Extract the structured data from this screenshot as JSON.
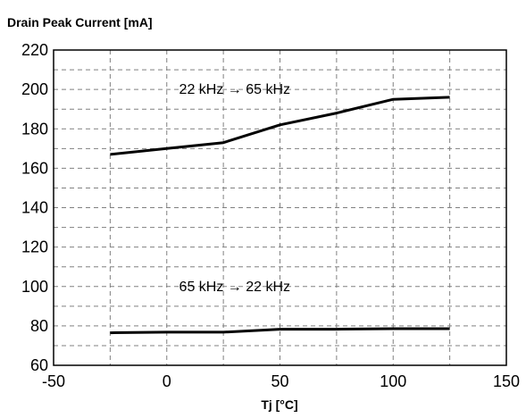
{
  "chart_data": {
    "type": "line",
    "title": "",
    "ylabel": "Drain Peak Current [mA]",
    "xlabel": "Tj [°C]",
    "xlim": [
      -50,
      150
    ],
    "ylim": [
      60,
      220
    ],
    "x_ticks": [
      -50,
      0,
      50,
      100,
      150
    ],
    "y_ticks": [
      60,
      80,
      100,
      120,
      140,
      160,
      180,
      200,
      220
    ],
    "grid": true,
    "series": [
      {
        "x": [
          -25,
          0,
          25,
          50,
          75,
          100,
          125
        ],
        "y": [
          167,
          170,
          173,
          182,
          188,
          195,
          196
        ]
      },
      {
        "x": [
          -25,
          0,
          25,
          50,
          75,
          100,
          125
        ],
        "y": [
          76.5,
          76.8,
          76.8,
          78.3,
          78.3,
          78.6,
          78.6
        ]
      }
    ],
    "annotations": [
      {
        "text": "22 kHz → 65 kHz",
        "x": 30,
        "y": 200
      },
      {
        "text": "65 kHz → 22 kHz",
        "x": 30,
        "y": 100
      }
    ]
  }
}
